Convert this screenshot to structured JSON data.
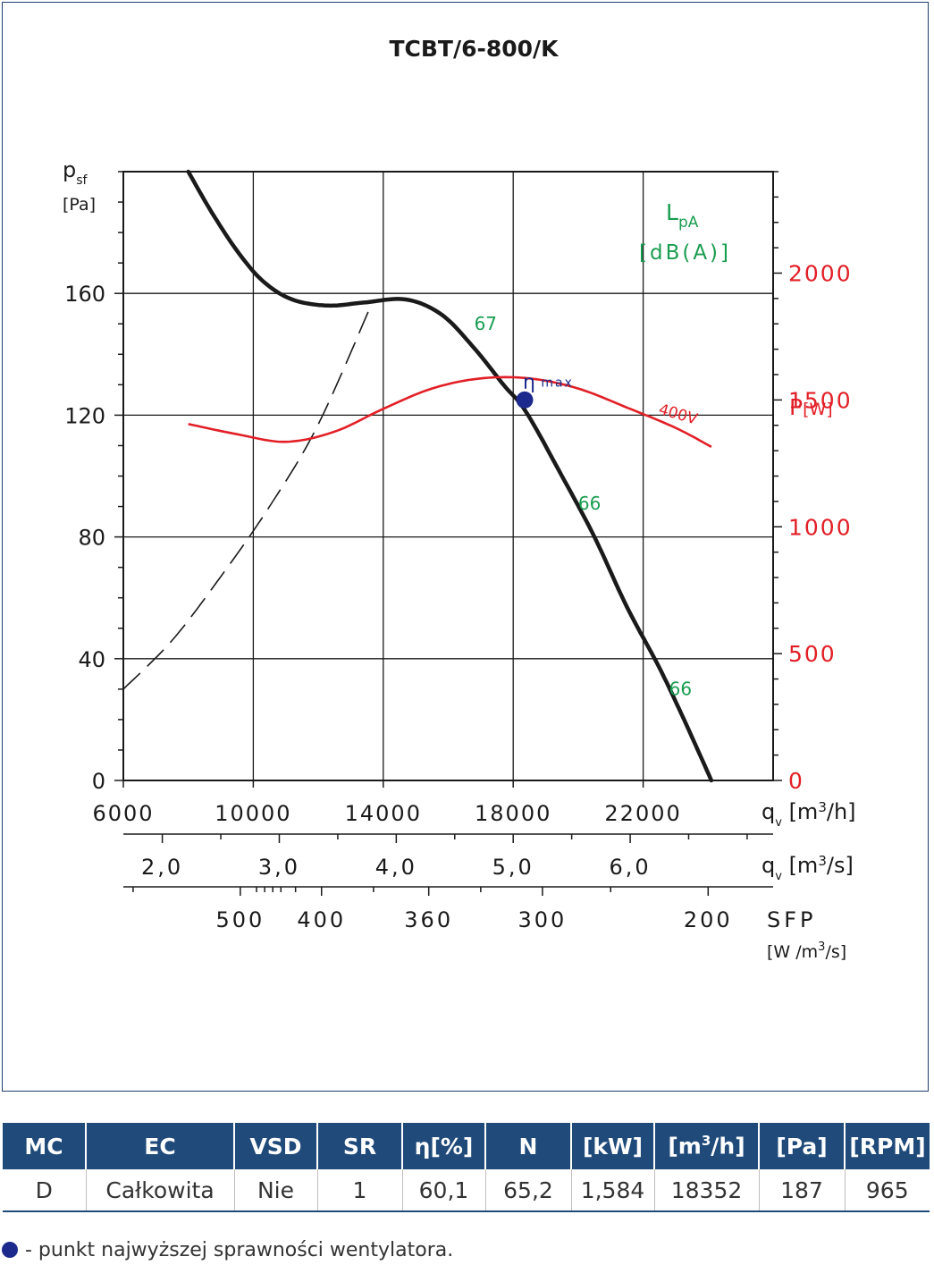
{
  "chart_data": {
    "type": "line",
    "title": "TCBT/6-800/K",
    "y_axis": {
      "label_main": "p",
      "label_sub": "sf",
      "unit": "[Pa]",
      "ylim": [
        0,
        200
      ],
      "ticks": [
        0,
        40,
        80,
        120,
        160
      ],
      "minor_step": 10
    },
    "x_axis_flow_m3h": {
      "label_main": "q",
      "label_sub": "v",
      "unit": "[m",
      "unit_sup": "3",
      "unit_end": "/h]",
      "xlim": [
        6000,
        26000
      ],
      "ticks": [
        6000,
        10000,
        14000,
        18000,
        22000
      ]
    },
    "x_axis_flow_m3s": {
      "label_main": "q",
      "label_sub": "v",
      "unit": "[m",
      "unit_sup": "3",
      "unit_end": "/s]",
      "ticks": [
        2.0,
        3.0,
        4.0,
        5.0,
        6.0
      ],
      "tick_labels": [
        "2,0",
        "3,0",
        "4,0",
        "5,0",
        "6,0"
      ],
      "minor": [
        2.5,
        3.5,
        4.5,
        5.5,
        6.5,
        7.0
      ]
    },
    "x_axis_sfp": {
      "label": "SFP",
      "unit": "[W /m",
      "unit_sup": "3",
      "unit_end": "/s]",
      "tick_labels": [
        "500",
        "400",
        "360",
        "300",
        "200"
      ],
      "ticks_at_flow_m3h": [
        9600,
        12100,
        15400,
        18900,
        24000
      ],
      "minor_at_flow_m3h": [
        6300,
        10100,
        10350,
        10600,
        10850,
        11300,
        13700,
        17000,
        21000
      ]
    },
    "power_axis": {
      "label": "P",
      "unit": "[W]",
      "ylim": [
        0,
        2400
      ],
      "ticks": [
        0,
        500,
        1000,
        1500,
        2000
      ],
      "minor_step": 100
    },
    "noise_axis": {
      "label_main": "L",
      "label_sub": "pA",
      "unit": "[dB(A)]"
    },
    "series": [
      {
        "name": "",
        "kind": "pressure",
        "x": [
          8000,
          8700,
          9500,
          10300,
          11200,
          12300,
          13400,
          14700,
          15800,
          16800,
          17700,
          18400,
          19500,
          20500,
          21500,
          22500,
          23300,
          24100
        ],
        "y": [
          200,
          187,
          174,
          164,
          158,
          156,
          157,
          158,
          153,
          142,
          130,
          121,
          100,
          80,
          57,
          37,
          19,
          0
        ]
      },
      {
        "name": "",
        "kind": "system",
        "x": [
          6000,
          7500,
          9000,
          10500,
          12000,
          13700
        ],
        "y": [
          30,
          46,
          67,
          90,
          117,
          158
        ]
      },
      {
        "name": "400V",
        "kind": "power",
        "x": [
          8000,
          9500,
          11000,
          12500,
          14000,
          15500,
          17000,
          18500,
          20000,
          21500,
          23000,
          24100
        ],
        "y": [
          1405,
          1365,
          1335,
          1375,
          1465,
          1545,
          1585,
          1585,
          1545,
          1470,
          1390,
          1315
        ]
      }
    ],
    "annotations": [
      {
        "text": "67",
        "x": 16800,
        "y": 148,
        "color": "#1a9d50"
      },
      {
        "text": "66",
        "x": 20000,
        "y": 89,
        "color": "#1a9d50"
      },
      {
        "text": "66",
        "x": 22800,
        "y": 28,
        "color": "#1a9d50"
      }
    ],
    "max_efficiency_point": {
      "label_main": "η",
      "label_sub": "max",
      "x": 18352,
      "y": 125,
      "color": "#1b2a8c"
    },
    "colors": {
      "pressure": "#1a1a1a",
      "system": "#1a1a1a",
      "power": "#e21f26",
      "noise": "#1a9d50",
      "axis": "#1a1a1a",
      "grid": "#1a1a1a"
    }
  },
  "table": {
    "headers": [
      {
        "text": "MC"
      },
      {
        "text": "EC"
      },
      {
        "text": "VSD"
      },
      {
        "text": "SR"
      },
      {
        "text": "η[%]"
      },
      {
        "text": "N"
      },
      {
        "text": "[kW]"
      },
      {
        "text": "[m",
        "sup": "3",
        "post": "/h]"
      },
      {
        "text": "[Pa]"
      },
      {
        "text": "[RPM]"
      }
    ],
    "row": [
      "D",
      "Całkowita",
      "Nie",
      "1",
      "60,1",
      "65,2",
      "1,584",
      "18352",
      "187",
      "965"
    ]
  },
  "footnote": "- punkt najwyższej sprawności wentylatora."
}
